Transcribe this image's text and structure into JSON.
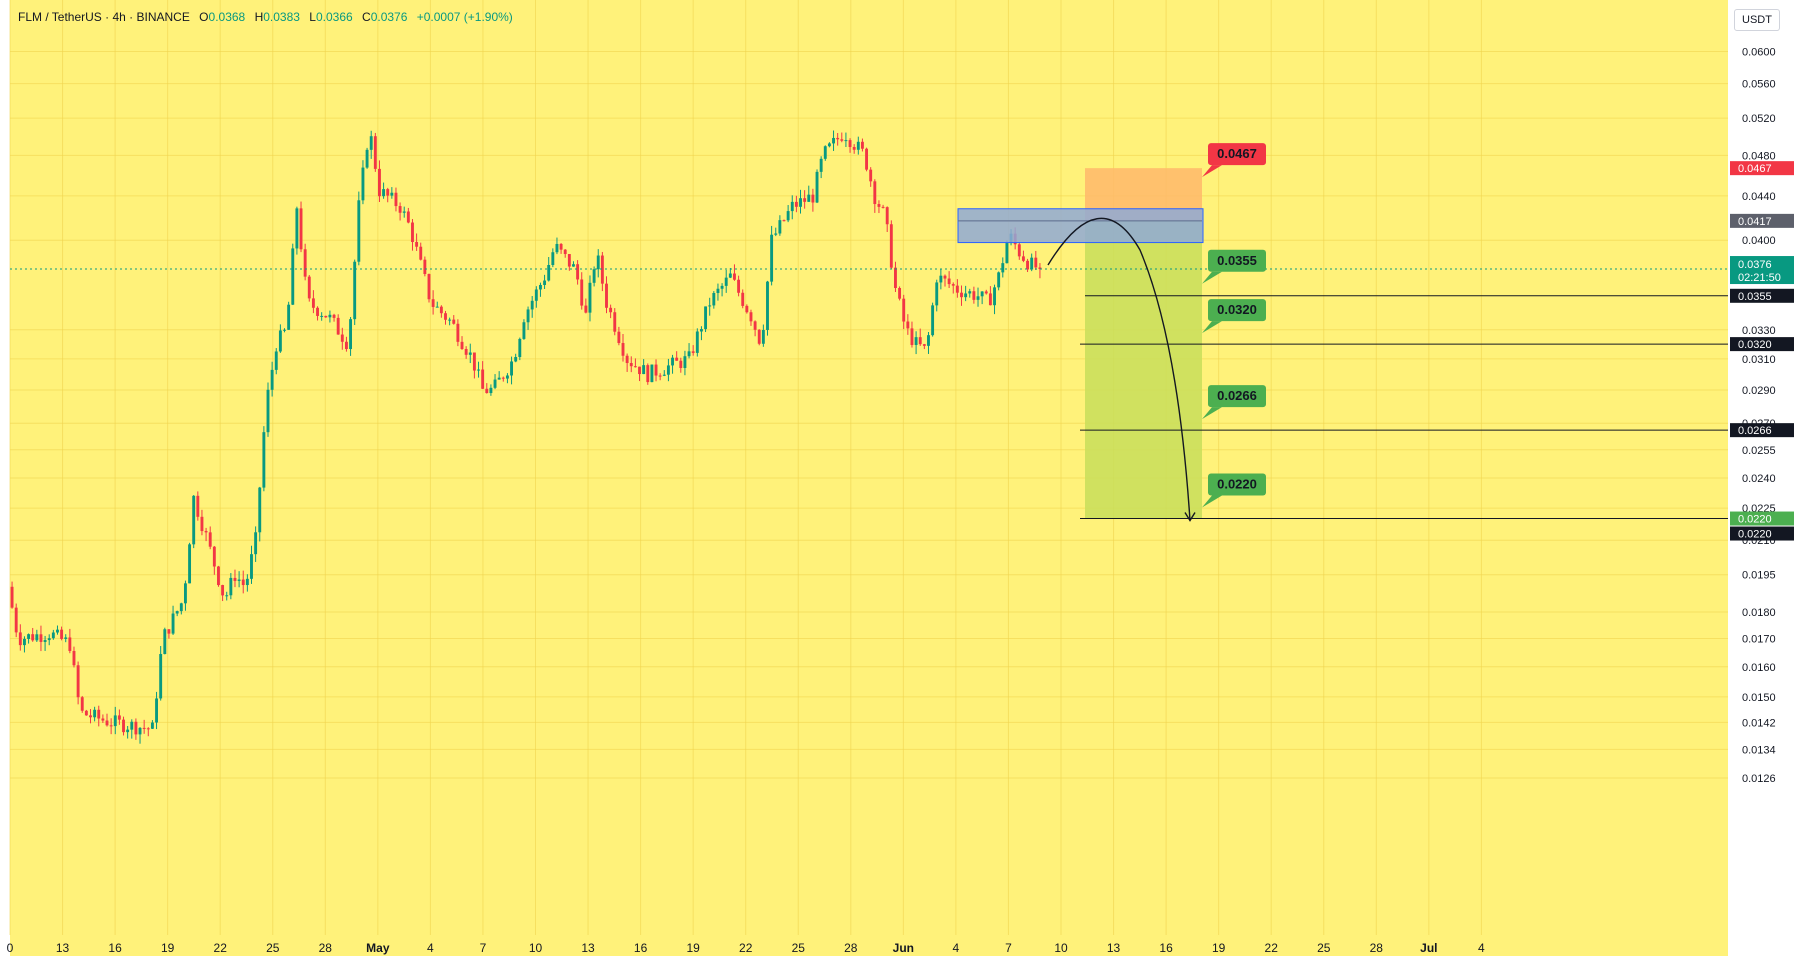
{
  "legend": {
    "symbol": "FLM / TetherUS · 4h · BINANCE",
    "o_label": "O",
    "o": "0.0368",
    "h_label": "H",
    "h": "0.0383",
    "l_label": "L",
    "l": "0.0366",
    "c_label": "C",
    "c": "0.0376",
    "change": "+0.0007 (+1.90%)"
  },
  "unit_button": "USDT",
  "colors": {
    "background": "#FFF27A",
    "up": "#089981",
    "down": "#F23645",
    "stop_zone": "#FFB86B",
    "target_zone": "#C8DE5A",
    "entry_box": "#8FA9D6",
    "stop_label": "#F23645",
    "target_label": "#4CAF50",
    "current_label": "#089981"
  },
  "chart_data": {
    "type": "candlestick",
    "x_axis": {
      "ticks": [
        "0",
        "13",
        "16",
        "19",
        "22",
        "25",
        "28",
        "May",
        "4",
        "7",
        "10",
        "13",
        "16",
        "19",
        "22",
        "25",
        "28",
        "Jun",
        "4",
        "7",
        "10",
        "13",
        "16",
        "19",
        "22",
        "25",
        "28",
        "Jul",
        "4"
      ]
    },
    "y_axis": {
      "scale": "log",
      "range": [
        0.0122,
        0.0615
      ],
      "ticks": [
        "0.0600",
        "0.0560",
        "0.0520",
        "0.0480",
        "0.0440",
        "0.0400",
        "0.0330",
        "0.0310",
        "0.0290",
        "0.0270",
        "0.0255",
        "0.0240",
        "0.0225",
        "0.0210",
        "0.0195",
        "0.0180",
        "0.0170",
        "0.0160",
        "0.0150",
        "0.0142",
        "0.0134",
        "0.0126"
      ]
    },
    "price_path": [
      [
        0,
        0.019
      ],
      [
        1,
        0.017
      ],
      [
        4,
        0.0172
      ],
      [
        6,
        0.0168
      ],
      [
        7,
        0.0145
      ],
      [
        10,
        0.0142
      ],
      [
        12,
        0.0141
      ],
      [
        14,
        0.014
      ],
      [
        15,
        0.017
      ],
      [
        17,
        0.0185
      ],
      [
        18,
        0.023
      ],
      [
        19,
        0.0215
      ],
      [
        21,
        0.0185
      ],
      [
        22,
        0.0195
      ],
      [
        23,
        0.019
      ],
      [
        24,
        0.021
      ],
      [
        25,
        0.028
      ],
      [
        26,
        0.032
      ],
      [
        27,
        0.033
      ],
      [
        28,
        0.043
      ],
      [
        29,
        0.035
      ],
      [
        31,
        0.034
      ],
      [
        33,
        0.032
      ],
      [
        34,
        0.043
      ],
      [
        35,
        0.051
      ],
      [
        36,
        0.0445
      ],
      [
        38,
        0.043
      ],
      [
        39,
        0.041
      ],
      [
        41,
        0.035
      ],
      [
        43,
        0.0335
      ],
      [
        45,
        0.031
      ],
      [
        46,
        0.029
      ],
      [
        47,
        0.029
      ],
      [
        49,
        0.031
      ],
      [
        50,
        0.034
      ],
      [
        52,
        0.037
      ],
      [
        53,
        0.0395
      ],
      [
        55,
        0.0375
      ],
      [
        56,
        0.034
      ],
      [
        57,
        0.039
      ],
      [
        58,
        0.035
      ],
      [
        60,
        0.031
      ],
      [
        62,
        0.03
      ],
      [
        64,
        0.0305
      ],
      [
        66,
        0.031
      ],
      [
        68,
        0.035
      ],
      [
        70,
        0.037
      ],
      [
        72,
        0.034
      ],
      [
        73,
        0.032
      ],
      [
        74,
        0.04
      ],
      [
        76,
        0.043
      ],
      [
        78,
        0.044
      ],
      [
        79,
        0.048
      ],
      [
        81,
        0.0505
      ],
      [
        83,
        0.048
      ],
      [
        84,
        0.044
      ],
      [
        85,
        0.042
      ],
      [
        86,
        0.036
      ],
      [
        87,
        0.033
      ],
      [
        88,
        0.032
      ],
      [
        89,
        0.0315
      ],
      [
        90,
        0.037
      ],
      [
        92,
        0.036
      ],
      [
        94,
        0.0355
      ],
      [
        95,
        0.035
      ],
      [
        96,
        0.037
      ],
      [
        97,
        0.0405
      ],
      [
        98,
        0.039
      ],
      [
        99,
        0.038
      ],
      [
        100,
        0.0376
      ]
    ],
    "last_price": 0.0376,
    "countdown": "02:21:50",
    "levels": {
      "stop": "0.0467",
      "entry": "0.0417",
      "targets": [
        "0.0355",
        "0.0320",
        "0.0266",
        "0.0220"
      ]
    },
    "axis_labels": {
      "stop": "0.0467",
      "entry": "0.0417",
      "current": "0.0376",
      "targets": [
        "0.0355",
        "0.0320",
        "0.0266",
        "0.0220",
        "0.0220"
      ]
    }
  }
}
